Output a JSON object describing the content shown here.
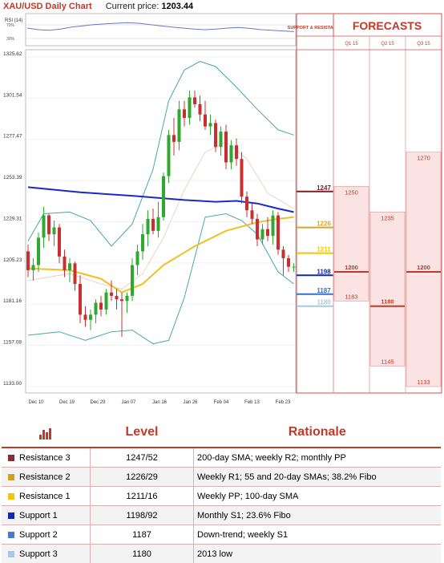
{
  "header": {
    "title": "XAU/USD Daily Chart",
    "price_label": "Current price:",
    "price_value": "1203.44"
  },
  "chart_data": {
    "type": "candlestick",
    "ylim": [
      1133,
      1325.62
    ],
    "y_ticks": [
      "1325.62",
      "1301.54",
      "1277.47",
      "1253.39",
      "1229.31",
      "1205.23",
      "1181.16",
      "1157.08",
      "1133.00"
    ],
    "x_ticks": [
      "Dec 10",
      "Dec 19",
      "Dec 29",
      "Jan 07",
      "Jan 16",
      "Jan 26",
      "Feb 04",
      "Feb 13",
      "Feb 23"
    ],
    "rsi_label": "RSI (14)",
    "rsi_ticks": [
      "70%",
      "30%"
    ],
    "rsi": [
      55,
      50,
      48,
      52,
      58,
      62,
      66,
      68,
      70,
      72,
      70,
      66,
      62,
      58,
      55,
      52,
      50,
      52,
      55,
      57,
      54,
      50,
      48,
      46,
      44
    ],
    "candles": [
      [
        1212,
        1216,
        1197,
        1201
      ],
      [
        1201,
        1208,
        1195,
        1204
      ],
      [
        1204,
        1223,
        1200,
        1220
      ],
      [
        1220,
        1238,
        1214,
        1233
      ],
      [
        1233,
        1234,
        1218,
        1222
      ],
      [
        1222,
        1230,
        1215,
        1226
      ],
      [
        1226,
        1228,
        1205,
        1209
      ],
      [
        1209,
        1213,
        1197,
        1201
      ],
      [
        1201,
        1208,
        1194,
        1205
      ],
      [
        1205,
        1206,
        1189,
        1193
      ],
      [
        1193,
        1198,
        1170,
        1175
      ],
      [
        1175,
        1180,
        1168,
        1172
      ],
      [
        1172,
        1178,
        1166,
        1175
      ],
      [
        1175,
        1184,
        1170,
        1182
      ],
      [
        1182,
        1186,
        1174,
        1178
      ],
      [
        1178,
        1190,
        1175,
        1188
      ],
      [
        1188,
        1195,
        1183,
        1186
      ],
      [
        1186,
        1190,
        1178,
        1184
      ],
      [
        1184,
        1188,
        1162,
        1183
      ],
      [
        1183,
        1188,
        1176,
        1186
      ],
      [
        1186,
        1208,
        1183,
        1204
      ],
      [
        1204,
        1216,
        1198,
        1212
      ],
      [
        1212,
        1228,
        1207,
        1222
      ],
      [
        1222,
        1236,
        1215,
        1231
      ],
      [
        1231,
        1237,
        1222,
        1224
      ],
      [
        1224,
        1241,
        1220,
        1232
      ],
      [
        1232,
        1258,
        1230,
        1256
      ],
      [
        1256,
        1283,
        1252,
        1280
      ],
      [
        1280,
        1290,
        1268,
        1276
      ],
      [
        1276,
        1300,
        1271,
        1295
      ],
      [
        1295,
        1300,
        1285,
        1290
      ],
      [
        1290,
        1306,
        1286,
        1302
      ],
      [
        1302,
        1306,
        1296,
        1298
      ],
      [
        1298,
        1303,
        1288,
        1292
      ],
      [
        1292,
        1300,
        1283,
        1285
      ],
      [
        1285,
        1292,
        1280,
        1287
      ],
      [
        1287,
        1289,
        1270,
        1273
      ],
      [
        1273,
        1285,
        1268,
        1282
      ],
      [
        1282,
        1286,
        1260,
        1264
      ],
      [
        1264,
        1277,
        1260,
        1274
      ],
      [
        1274,
        1278,
        1262,
        1266
      ],
      [
        1266,
        1270,
        1240,
        1244
      ],
      [
        1244,
        1247,
        1232,
        1236
      ],
      [
        1236,
        1240,
        1228,
        1231
      ],
      [
        1231,
        1234,
        1215,
        1219
      ],
      [
        1219,
        1228,
        1216,
        1225
      ],
      [
        1225,
        1232,
        1218,
        1221
      ],
      [
        1221,
        1236,
        1216,
        1233
      ],
      [
        1233,
        1235,
        1210,
        1213
      ],
      [
        1213,
        1215,
        1198,
        1208
      ],
      [
        1208,
        1210,
        1200,
        1203
      ],
      [
        1203,
        1205,
        1200,
        1203
      ]
    ],
    "sma200": [
      [
        0,
        1249.5
      ],
      [
        10,
        1246.5
      ],
      [
        20,
        1244.5
      ],
      [
        30,
        1242
      ],
      [
        36,
        1241
      ],
      [
        40,
        1241.5
      ],
      [
        44,
        1240
      ],
      [
        48,
        1237
      ],
      [
        51,
        1235
      ]
    ],
    "sma100": [
      [
        0,
        1202
      ],
      [
        8,
        1201
      ],
      [
        14,
        1196
      ],
      [
        18,
        1188
      ],
      [
        22,
        1193
      ],
      [
        26,
        1204
      ],
      [
        32,
        1215
      ],
      [
        38,
        1224
      ],
      [
        44,
        1229
      ],
      [
        48,
        1231
      ],
      [
        51,
        1232
      ]
    ],
    "bb_upper": [
      [
        0,
        1218
      ],
      [
        3,
        1234
      ],
      [
        8,
        1235
      ],
      [
        12,
        1230
      ],
      [
        16,
        1215
      ],
      [
        20,
        1228
      ],
      [
        24,
        1260
      ],
      [
        27,
        1300
      ],
      [
        30,
        1318
      ],
      [
        33,
        1323
      ],
      [
        36,
        1320
      ],
      [
        40,
        1308
      ],
      [
        44,
        1295
      ],
      [
        48,
        1283
      ],
      [
        51,
        1280
      ]
    ],
    "bb_lower": [
      [
        0,
        1163
      ],
      [
        6,
        1165
      ],
      [
        11,
        1160
      ],
      [
        16,
        1165
      ],
      [
        20,
        1166
      ],
      [
        24,
        1158
      ],
      [
        27,
        1160
      ],
      [
        30,
        1185
      ],
      [
        34,
        1232
      ],
      [
        38,
        1234
      ],
      [
        41,
        1230
      ],
      [
        44,
        1222
      ],
      [
        48,
        1200
      ],
      [
        51,
        1193
      ]
    ],
    "bb_mid": [
      [
        0,
        1195
      ],
      [
        8,
        1199
      ],
      [
        14,
        1193
      ],
      [
        18,
        1190
      ],
      [
        22,
        1199
      ],
      [
        26,
        1220
      ],
      [
        30,
        1248
      ],
      [
        34,
        1270
      ],
      [
        38,
        1276
      ],
      [
        42,
        1266
      ],
      [
        46,
        1246
      ],
      [
        51,
        1237
      ]
    ],
    "sr_levels": [
      {
        "label": "1247",
        "value": 1247,
        "color": "#7a1f2b"
      },
      {
        "label": "1226",
        "value": 1226,
        "color": "#d4a82a"
      },
      {
        "label": "1211",
        "value": 1211,
        "color": "#f0c800"
      },
      {
        "label": "1198",
        "value": 1198,
        "color": "#1428a0"
      },
      {
        "label": "1187",
        "value": 1187,
        "color": "#3a6fc4"
      },
      {
        "label": "1180",
        "value": 1180,
        "color": "#a8c8e0"
      }
    ]
  },
  "forecasts": {
    "side_header": "SUPPORT & RESISTANCE",
    "title": "FORECASTS",
    "columns": [
      {
        "label": "Q1 15",
        "top": 1250,
        "bottom": 1183,
        "mid": 1200,
        "labels": [
          "1250",
          "1200",
          "1183"
        ]
      },
      {
        "label": "Q2 15",
        "top": 1235,
        "bottom": 1145,
        "mid": 1180,
        "labels": [
          "1235",
          "1180",
          "1145"
        ]
      },
      {
        "label": "Q3 15",
        "top": 1270,
        "bottom": 1133,
        "mid": 1200,
        "labels": [
          "1270",
          "1200",
          "1133"
        ]
      }
    ]
  },
  "table": {
    "headers": {
      "level": "Level",
      "rationale": "Rationale"
    },
    "rows": [
      {
        "name": "Resistance 3",
        "level": "1247/52",
        "rationale": "200-day SMA; weekly R2; monthly PP",
        "color": "#8b2d2d"
      },
      {
        "name": "Resistance 2",
        "level": "1226/29",
        "rationale": "Weekly R1; 55 and 20-day SMAs; 38.2% Fibo",
        "color": "#d4a020"
      },
      {
        "name": "Resistance 1",
        "level": "1211/16",
        "rationale": "Weekly PP; 100-day SMA",
        "color": "#f0c800"
      },
      {
        "name": "Support 1",
        "level": "1198/92",
        "rationale": "Monthly S1; 23.6% Fibo",
        "color": "#1428b4"
      },
      {
        "name": "Support 2",
        "level": "1187",
        "rationale": "Down-trend; weekly S1",
        "color": "#4a7cc8"
      },
      {
        "name": "Support 3",
        "level": "1180",
        "rationale": "2013 low",
        "color": "#a8c8e8"
      }
    ]
  }
}
